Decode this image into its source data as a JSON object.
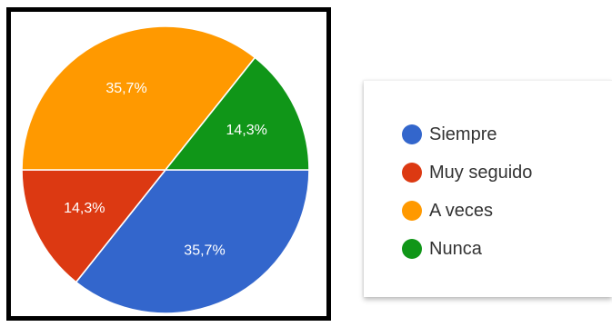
{
  "chart_data": {
    "type": "pie",
    "slices": [
      {
        "label": "Siempre",
        "value": 35.7,
        "display": "35,7%",
        "color": "#3366cc"
      },
      {
        "label": "Muy seguido",
        "value": 14.3,
        "display": "14,3%",
        "color": "#dc3912"
      },
      {
        "label": "A veces",
        "value": 35.7,
        "display": "35,7%",
        "color": "#ff9900"
      },
      {
        "label": "Nunca",
        "value": 14.3,
        "display": "14,3%",
        "color": "#109618"
      }
    ],
    "start": "right, clockwise",
    "legend_position": "right"
  }
}
